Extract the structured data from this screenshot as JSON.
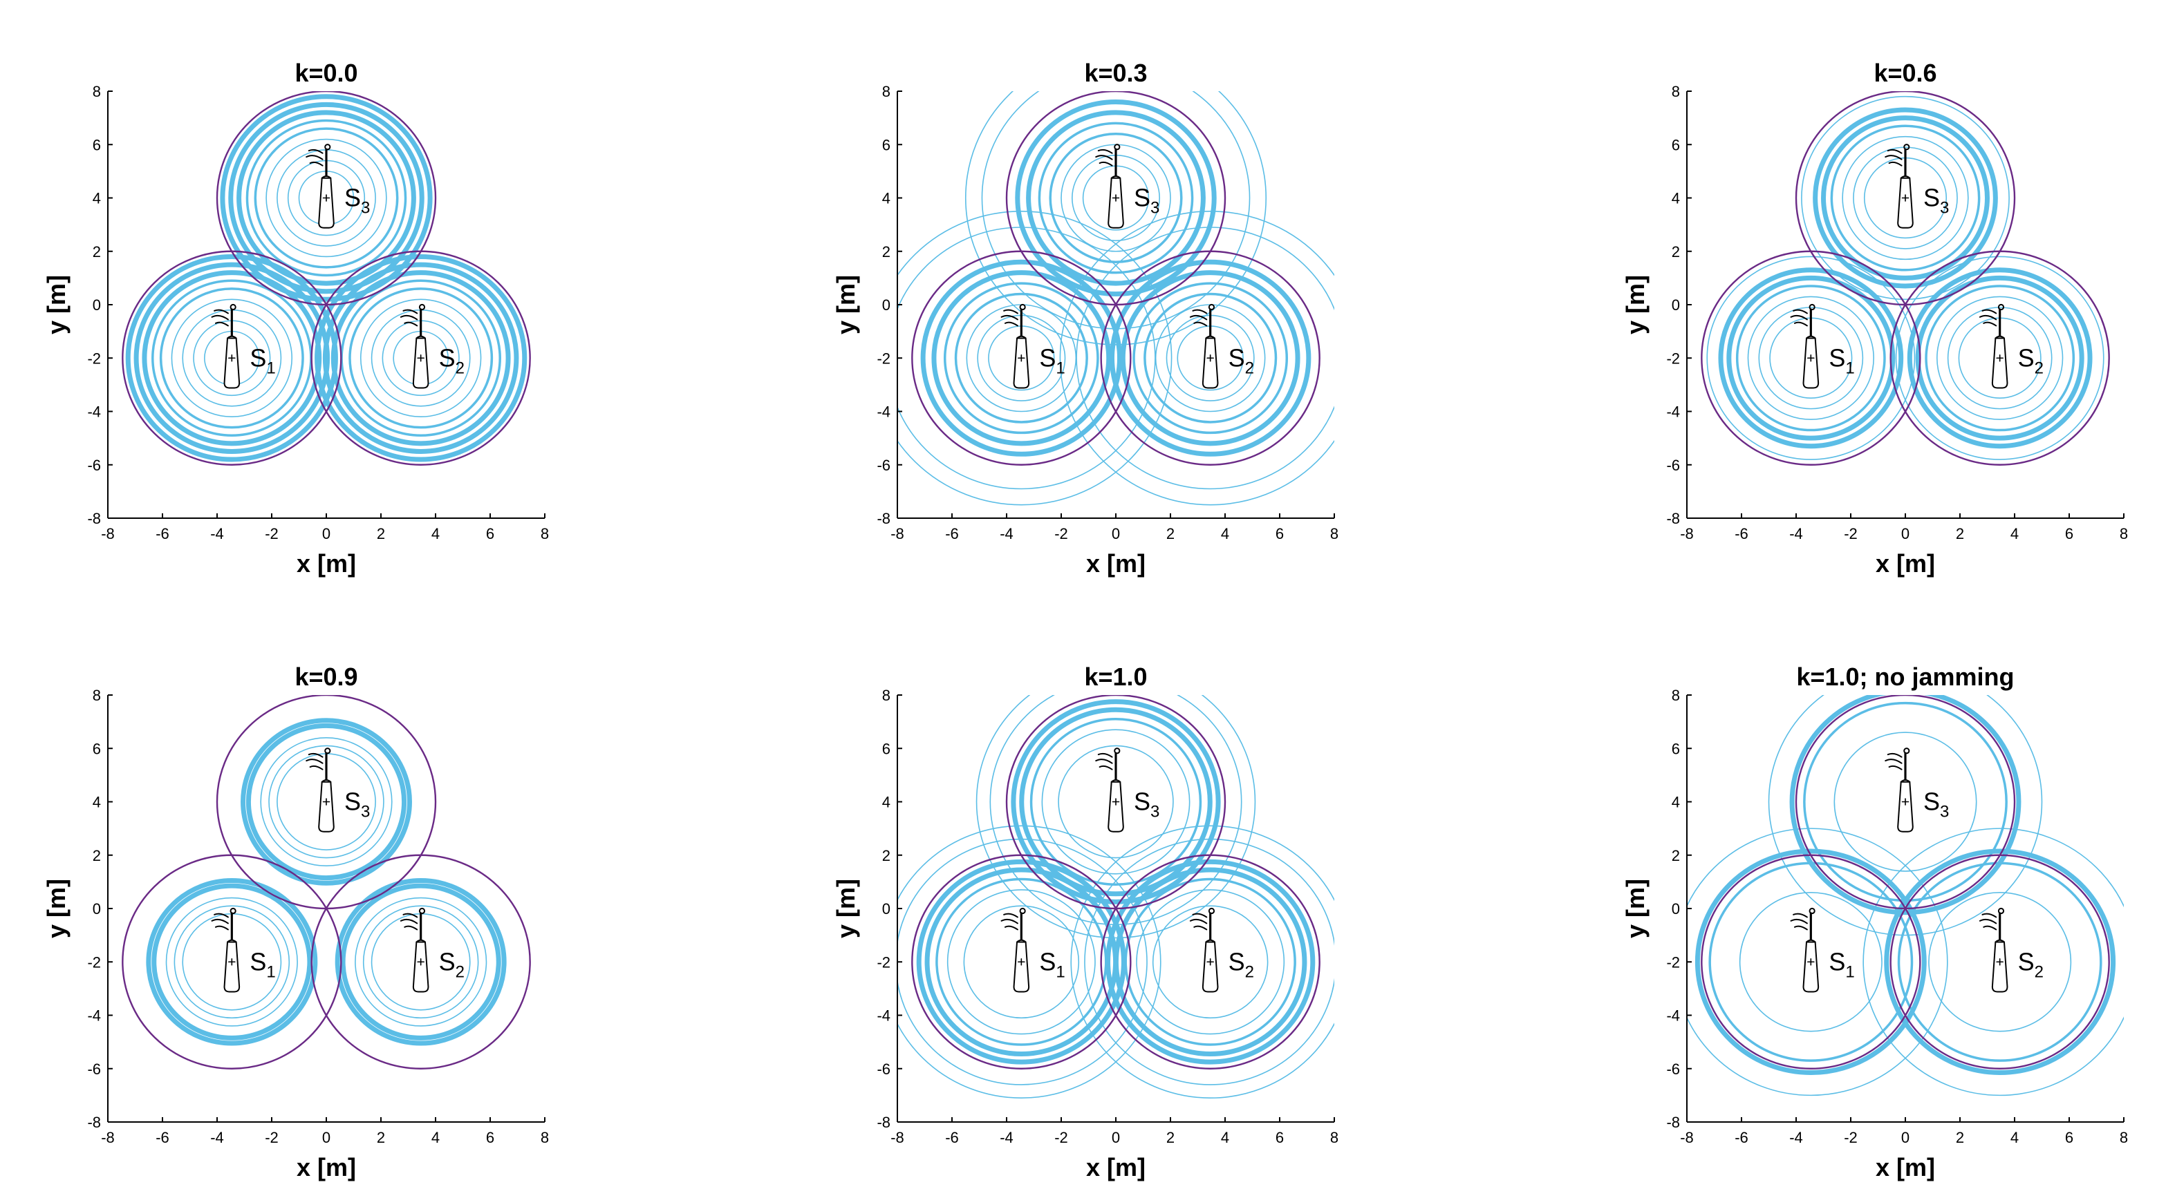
{
  "colors": {
    "coverage_boundary": "#6a2a86",
    "wave_rings": "#5bbde6",
    "axes": "#000000",
    "sensor": "#000000"
  },
  "chart_data": [
    {
      "type": "scatter",
      "title": "k=0.0",
      "xlabel": "x [m]",
      "ylabel": "y [m]",
      "xlim": [
        -8,
        8
      ],
      "ylim": [
        -8,
        8
      ],
      "xticks": [
        -8,
        -6,
        -4,
        -2,
        0,
        2,
        4,
        6,
        8
      ],
      "yticks": [
        -8,
        -6,
        -4,
        -2,
        0,
        2,
        4,
        6,
        8
      ],
      "grid": false,
      "sensors": [
        {
          "label": "S",
          "sub": "1",
          "x": -3.46,
          "y": -2
        },
        {
          "label": "S",
          "sub": "2",
          "x": 3.46,
          "y": -2
        },
        {
          "label": "S",
          "sub": "3",
          "x": 0,
          "y": 4
        }
      ],
      "coverage_radius": 4,
      "rings": {
        "thin": [
          1.0,
          1.4,
          1.8,
          2.2
        ],
        "medium": [
          2.6,
          2.9
        ],
        "thick": [
          3.2,
          3.5,
          3.8
        ]
      }
    },
    {
      "type": "scatter",
      "title": "k=0.3",
      "xlabel": "x [m]",
      "ylabel": "y [m]",
      "xlim": [
        -8,
        8
      ],
      "ylim": [
        -8,
        8
      ],
      "xticks": [
        -8,
        -6,
        -4,
        -2,
        0,
        2,
        4,
        6,
        8
      ],
      "yticks": [
        -8,
        -6,
        -4,
        -2,
        0,
        2,
        4,
        6,
        8
      ],
      "grid": false,
      "sensors": [
        {
          "label": "S",
          "sub": "1",
          "x": -3.46,
          "y": -2
        },
        {
          "label": "S",
          "sub": "2",
          "x": 3.46,
          "y": -2
        },
        {
          "label": "S",
          "sub": "3",
          "x": 0,
          "y": 4
        }
      ],
      "coverage_radius": 4,
      "rings": {
        "thin": [
          1.2,
          1.6,
          2.0,
          4.9,
          5.5
        ],
        "medium": [
          2.4,
          2.8
        ],
        "thick": [
          3.2,
          3.6
        ]
      }
    },
    {
      "type": "scatter",
      "title": "k=0.6",
      "xlabel": "x [m]",
      "ylabel": "y [m]",
      "xlim": [
        -8,
        8
      ],
      "ylim": [
        -8,
        8
      ],
      "xticks": [
        -8,
        -6,
        -4,
        -2,
        0,
        2,
        4,
        6,
        8
      ],
      "yticks": [
        -8,
        -6,
        -4,
        -2,
        0,
        2,
        4,
        6,
        8
      ],
      "grid": false,
      "sensors": [
        {
          "label": "S",
          "sub": "1",
          "x": -3.46,
          "y": -2
        },
        {
          "label": "S",
          "sub": "2",
          "x": 3.46,
          "y": -2
        },
        {
          "label": "S",
          "sub": "3",
          "x": 0,
          "y": 4
        }
      ],
      "coverage_radius": 4,
      "rings": {
        "thin": [
          1.5,
          1.9,
          2.3,
          3.8
        ],
        "medium": [
          2.7
        ],
        "thick": [
          3.0,
          3.3
        ]
      }
    },
    {
      "type": "scatter",
      "title": "k=0.9",
      "xlabel": "x [m]",
      "ylabel": "y [m]",
      "xlim": [
        -8,
        8
      ],
      "ylim": [
        -8,
        8
      ],
      "xticks": [
        -8,
        -6,
        -4,
        -2,
        0,
        2,
        4,
        6,
        8
      ],
      "yticks": [
        -8,
        -6,
        -4,
        -2,
        0,
        2,
        4,
        6,
        8
      ],
      "grid": false,
      "sensors": [
        {
          "label": "S",
          "sub": "1",
          "x": -3.46,
          "y": -2
        },
        {
          "label": "S",
          "sub": "2",
          "x": 3.46,
          "y": -2
        },
        {
          "label": "S",
          "sub": "3",
          "x": 0,
          "y": 4
        }
      ],
      "coverage_radius": 4,
      "rings": {
        "thin": [
          1.8,
          2.1,
          2.4
        ],
        "medium": [],
        "thick": [
          2.85,
          3.05
        ]
      }
    },
    {
      "type": "scatter",
      "title": "k=1.0",
      "xlabel": "x [m]",
      "ylabel": "y [m]",
      "xlim": [
        -8,
        8
      ],
      "ylim": [
        -8,
        8
      ],
      "xticks": [
        -8,
        -6,
        -4,
        -2,
        0,
        2,
        4,
        6,
        8
      ],
      "yticks": [
        -8,
        -6,
        -4,
        -2,
        0,
        2,
        4,
        6,
        8
      ],
      "grid": false,
      "sensors": [
        {
          "label": "S",
          "sub": "1",
          "x": -3.46,
          "y": -2
        },
        {
          "label": "S",
          "sub": "2",
          "x": 3.46,
          "y": -2
        },
        {
          "label": "S",
          "sub": "3",
          "x": 0,
          "y": 4
        }
      ],
      "coverage_radius": 4,
      "rings": {
        "thin": [
          2.1,
          2.7,
          4.6,
          5.1
        ],
        "medium": [
          3.1
        ],
        "thick": [
          3.45,
          3.75
        ]
      }
    },
    {
      "type": "scatter",
      "title": "k=1.0; no jamming",
      "xlabel": "x [m]",
      "ylabel": "y [m]",
      "xlim": [
        -8,
        8
      ],
      "ylim": [
        -8,
        8
      ],
      "xticks": [
        -8,
        -6,
        -4,
        -2,
        0,
        2,
        4,
        6,
        8
      ],
      "yticks": [
        -8,
        -6,
        -4,
        -2,
        0,
        2,
        4,
        6,
        8
      ],
      "grid": false,
      "sensors": [
        {
          "label": "S",
          "sub": "1",
          "x": -3.46,
          "y": -2
        },
        {
          "label": "S",
          "sub": "2",
          "x": 3.46,
          "y": -2
        },
        {
          "label": "S",
          "sub": "3",
          "x": 0,
          "y": 4
        }
      ],
      "coverage_radius": 4,
      "rings": {
        "thin": [
          2.6,
          5.0
        ],
        "medium": [
          3.7
        ],
        "thick": [
          4.15
        ]
      }
    }
  ]
}
